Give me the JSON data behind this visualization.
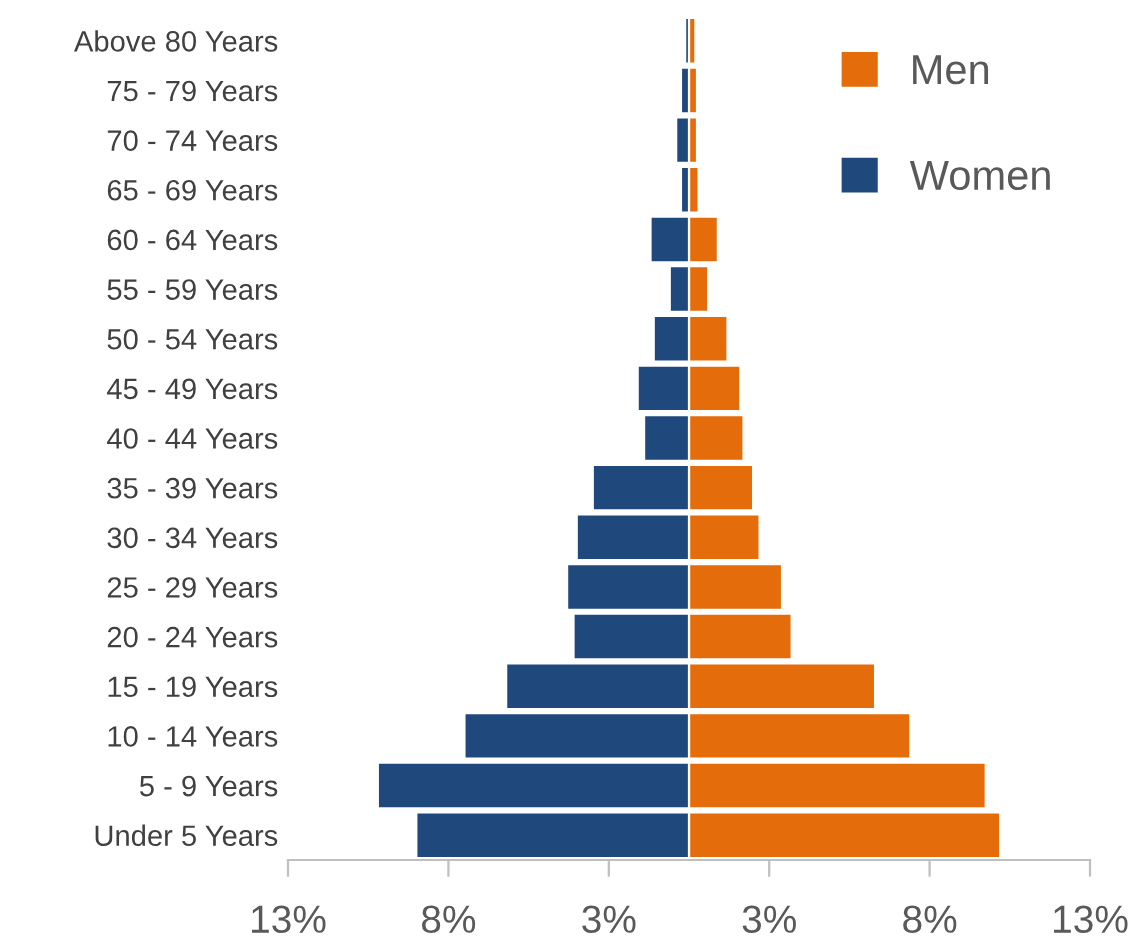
{
  "chart_data": {
    "type": "bar",
    "orientation": "horizontal",
    "stacked": true,
    "legend": "top right",
    "categories": [
      "Above 80 Years",
      "75 - 79 Years",
      "70 - 74 Years",
      "65 - 69 Years",
      "60 - 64 Years",
      "55 - 59 Years",
      "50 - 54 Years",
      "45 - 49 Years",
      "40 - 44 Years",
      "35 - 39 Years",
      "30 - 34 Years",
      "25 - 29 Years",
      "20 - 24 Years",
      "15 - 19 Years",
      "10 - 14 Years",
      "5 - 9 Years",
      "Under 5 Years"
    ],
    "series": [
      {
        "name": "Men",
        "color": "#e46c0a",
        "values": [
          0.2,
          0.25,
          0.25,
          0.3,
          0.9,
          0.6,
          1.2,
          1.6,
          1.7,
          2.0,
          2.2,
          2.9,
          3.2,
          5.8,
          6.9,
          9.25,
          9.7
        ]
      },
      {
        "name": "Women",
        "color": "#1f497d",
        "values": [
          -0.12,
          -0.25,
          -0.4,
          -0.25,
          -1.2,
          -0.6,
          -1.1,
          -1.6,
          -1.4,
          -3.0,
          -3.5,
          -3.8,
          -3.6,
          -5.7,
          -7.0,
          -9.7,
          -8.5
        ]
      }
    ],
    "xlim": [
      -12.5,
      12.5
    ],
    "xticks": [
      {
        "value": -12.5,
        "label": "13%"
      },
      {
        "value": -7.5,
        "label": "8%"
      },
      {
        "value": -2.5,
        "label": "3%"
      },
      {
        "value": 2.5,
        "label": "3%"
      },
      {
        "value": 7.5,
        "label": "8%"
      },
      {
        "value": 12.5,
        "label": "13%"
      }
    ]
  }
}
